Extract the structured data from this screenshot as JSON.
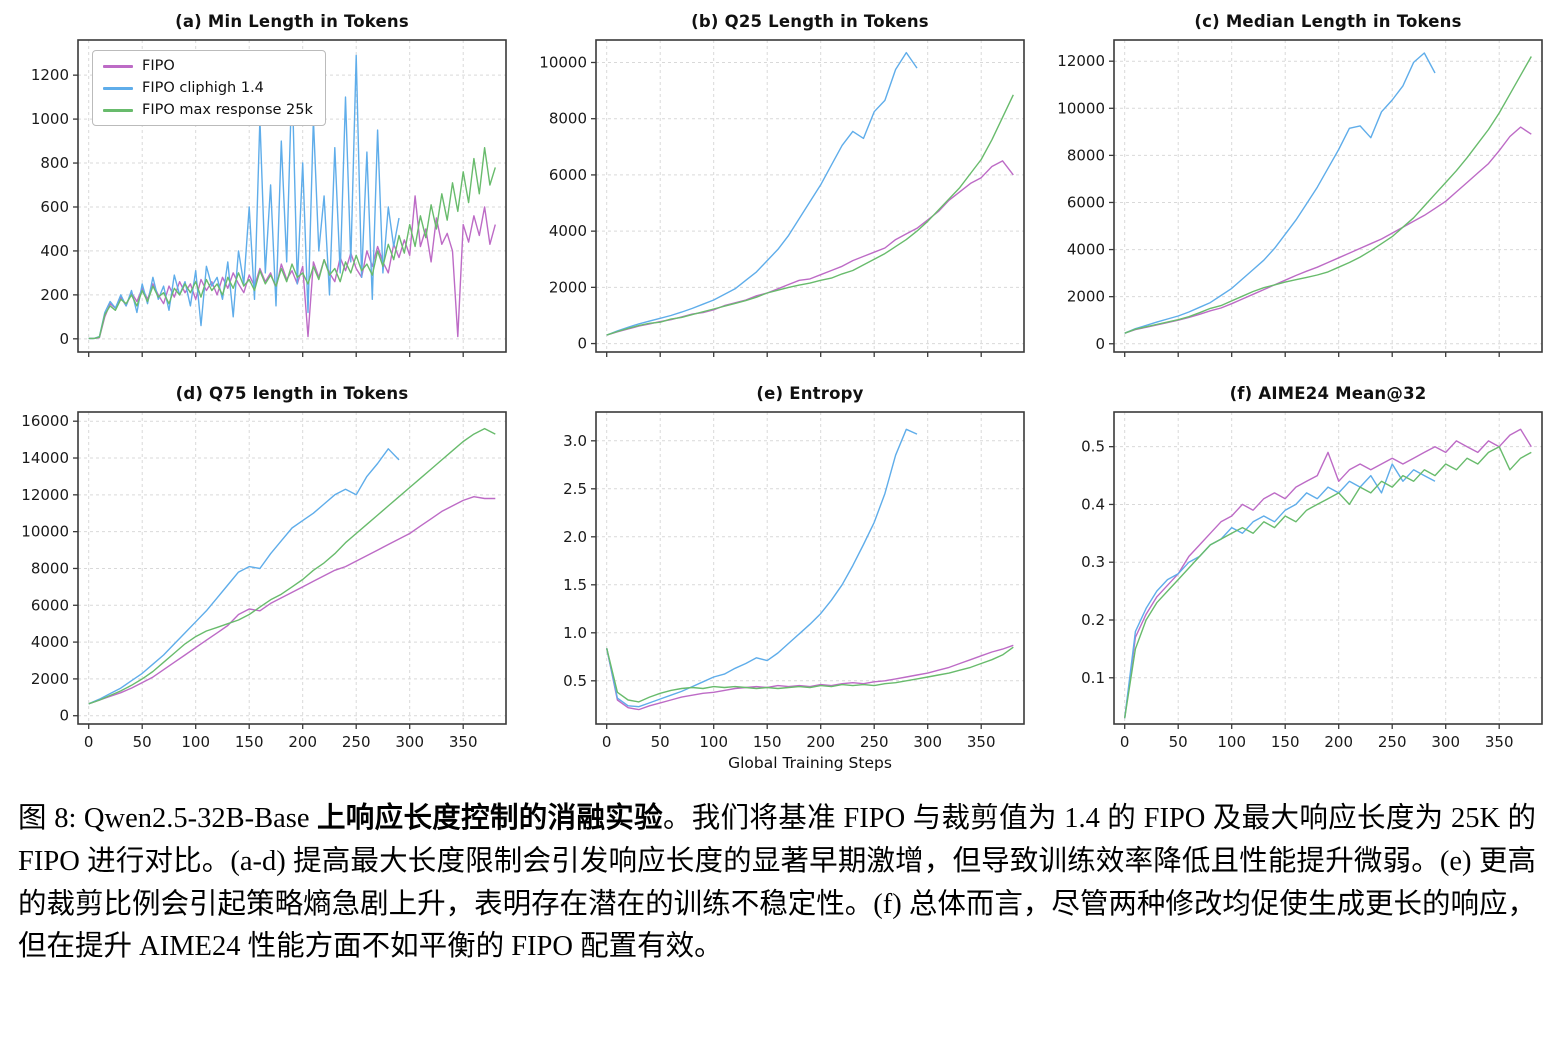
{
  "legend": {
    "entries": [
      {
        "label": "FIPO",
        "color": "#bd6bc6"
      },
      {
        "label": "FIPO cliphigh 1.4",
        "color": "#5fadea"
      },
      {
        "label": "FIPO max response 25k",
        "color": "#68bb6c"
      }
    ]
  },
  "caption": {
    "part1": "图 8: Qwen2.5-32B-Base ",
    "bold": "上响应长度控制的消融实验",
    "part2": "。我们将基准 FIPO 与裁剪值为 1.4 的 FIPO 及最大响应长度为 25K 的 FIPO 进行对比。(a-d) 提高最大长度限制会引发响应长度的显著早期激增，但导致训练效率降低且性能提升微弱。(e) 更高的裁剪比例会引起策略熵急剧上升，表明存在潜在的训练不稳定性。(f) 总体而言，尽管两种修改均促使生成更长的响应，但在提升 AIME24 性能方面不如平衡的 FIPO 配置有效。"
  },
  "chart_data": [
    {
      "id": "a",
      "type": "line",
      "title": "(a) Min Length in Tokens",
      "xlabel": "",
      "xlim": [
        -10,
        390
      ],
      "ylim": [
        -60,
        1360
      ],
      "xticks": [
        0,
        50,
        100,
        150,
        200,
        250,
        300,
        350
      ],
      "yticks": [
        0,
        200,
        400,
        600,
        800,
        1000,
        1200
      ],
      "grid": true,
      "legend_position": "upper left",
      "series": [
        {
          "name": "FIPO",
          "color": "#bd6bc6",
          "x0": 0,
          "dx": 5,
          "values": [
            2,
            2,
            5,
            100,
            160,
            140,
            190,
            150,
            210,
            170,
            230,
            180,
            250,
            200,
            160,
            240,
            190,
            260,
            210,
            250,
            180,
            270,
            220,
            260,
            200,
            280,
            230,
            300,
            250,
            210,
            290,
            240,
            320,
            260,
            300,
            230,
            340,
            270,
            310,
            250,
            330,
            10,
            350,
            280,
            360,
            300,
            260,
            370,
            310,
            390,
            320,
            280,
            400,
            330,
            420,
            350,
            300,
            430,
            370,
            450,
            380,
            650,
            420,
            500,
            350,
            550,
            430,
            480,
            400,
            10,
            520,
            440,
            560,
            470,
            600,
            430,
            520
          ]
        },
        {
          "name": "FIPO cliphigh 1.4",
          "color": "#5fadea",
          "x0": 0,
          "dx": 5,
          "values": [
            2,
            2,
            10,
            120,
            170,
            140,
            200,
            150,
            220,
            120,
            250,
            160,
            280,
            180,
            240,
            130,
            290,
            200,
            260,
            150,
            310,
            60,
            330,
            240,
            280,
            180,
            350,
            100,
            400,
            250,
            600,
            180,
            1000,
            300,
            700,
            150,
            900,
            350,
            1200,
            250,
            800,
            120,
            1000,
            400,
            650,
            200,
            870,
            300,
            1100,
            350,
            1290,
            280,
            850,
            180,
            950,
            300,
            600,
            420,
            550
          ]
        },
        {
          "name": "FIPO max response 25k",
          "color": "#68bb6c",
          "x0": 0,
          "dx": 5,
          "values": [
            2,
            2,
            8,
            110,
            150,
            130,
            180,
            160,
            200,
            150,
            220,
            170,
            240,
            190,
            210,
            160,
            230,
            200,
            250,
            210,
            260,
            190,
            270,
            220,
            250,
            200,
            280,
            230,
            300,
            240,
            270,
            220,
            310,
            250,
            290,
            240,
            320,
            260,
            340,
            280,
            300,
            250,
            330,
            270,
            360,
            290,
            320,
            260,
            350,
            300,
            380,
            310,
            340,
            290,
            400,
            330,
            430,
            360,
            470,
            390,
            520,
            420,
            560,
            460,
            610,
            500,
            660,
            540,
            710,
            580,
            760,
            620,
            820,
            660,
            870,
            700,
            780
          ]
        }
      ]
    },
    {
      "id": "b",
      "type": "line",
      "title": "(b) Q25 Length in Tokens",
      "xlabel": "",
      "xlim": [
        -10,
        390
      ],
      "ylim": [
        -300,
        10800
      ],
      "xticks": [
        0,
        50,
        100,
        150,
        200,
        250,
        300,
        350
      ],
      "yticks": [
        0,
        2000,
        4000,
        6000,
        8000,
        10000
      ],
      "grid": true,
      "series": [
        {
          "name": "FIPO",
          "color": "#bd6bc6",
          "x0": 0,
          "dx": 10,
          "values": [
            300,
            420,
            520,
            620,
            700,
            780,
            850,
            950,
            1050,
            1100,
            1200,
            1350,
            1450,
            1550,
            1700,
            1800,
            1950,
            2100,
            2250,
            2300,
            2450,
            2600,
            2750,
            2950,
            3100,
            3250,
            3400,
            3700,
            3900,
            4100,
            4400,
            4700,
            5100,
            5400,
            5700,
            5900,
            6300,
            6500,
            6000
          ]
        },
        {
          "name": "FIPO cliphigh 1.4",
          "color": "#5fadea",
          "x0": 0,
          "dx": 10,
          "values": [
            300,
            450,
            580,
            700,
            800,
            900,
            1000,
            1120,
            1250,
            1400,
            1550,
            1750,
            1950,
            2250,
            2550,
            2950,
            3350,
            3850,
            4450,
            5050,
            5650,
            6350,
            7050,
            7550,
            7300,
            8250,
            8650,
            9750,
            10350,
            9800
          ]
        },
        {
          "name": "FIPO max response 25k",
          "color": "#68bb6c",
          "x0": 0,
          "dx": 10,
          "values": [
            300,
            430,
            540,
            640,
            720,
            760,
            870,
            930,
            1030,
            1130,
            1230,
            1330,
            1430,
            1530,
            1650,
            1800,
            1900,
            2000,
            2080,
            2150,
            2250,
            2330,
            2480,
            2600,
            2800,
            3000,
            3200,
            3450,
            3700,
            4000,
            4350,
            4750,
            5150,
            5550,
            6050,
            6550,
            7250,
            8050,
            8850
          ]
        }
      ]
    },
    {
      "id": "c",
      "type": "line",
      "title": "(c) Median Length in Tokens",
      "xlabel": "",
      "xlim": [
        -10,
        390
      ],
      "ylim": [
        -350,
        12900
      ],
      "xticks": [
        0,
        50,
        100,
        150,
        200,
        250,
        300,
        350
      ],
      "yticks": [
        0,
        2000,
        4000,
        6000,
        8000,
        10000,
        12000
      ],
      "grid": true,
      "series": [
        {
          "name": "FIPO",
          "color": "#bd6bc6",
          "x0": 0,
          "dx": 10,
          "values": [
            450,
            600,
            700,
            800,
            900,
            1000,
            1120,
            1250,
            1400,
            1520,
            1700,
            1900,
            2100,
            2300,
            2500,
            2700,
            2900,
            3080,
            3250,
            3450,
            3650,
            3850,
            4050,
            4250,
            4450,
            4700,
            4950,
            5200,
            5450,
            5750,
            6050,
            6450,
            6850,
            7250,
            7650,
            8200,
            8800,
            9200,
            8900
          ]
        },
        {
          "name": "FIPO cliphigh 1.4",
          "color": "#5fadea",
          "x0": 0,
          "dx": 10,
          "values": [
            450,
            640,
            780,
            920,
            1050,
            1180,
            1350,
            1550,
            1750,
            2050,
            2350,
            2750,
            3150,
            3550,
            4050,
            4650,
            5250,
            5950,
            6650,
            7450,
            8250,
            9150,
            9250,
            8750,
            9850,
            10350,
            10950,
            11950,
            12350,
            11500
          ]
        },
        {
          "name": "FIPO max response 25k",
          "color": "#68bb6c",
          "x0": 0,
          "dx": 10,
          "values": [
            450,
            620,
            720,
            820,
            920,
            1020,
            1150,
            1320,
            1500,
            1620,
            1820,
            2020,
            2220,
            2380,
            2500,
            2620,
            2720,
            2820,
            2920,
            3050,
            3250,
            3450,
            3680,
            3950,
            4250,
            4550,
            4950,
            5350,
            5850,
            6350,
            6850,
            7350,
            7900,
            8500,
            9100,
            9800,
            10600,
            11400,
            12200
          ]
        }
      ]
    },
    {
      "id": "d",
      "type": "line",
      "title": "(d) Q75 length in Tokens",
      "xlabel": "",
      "xlim": [
        -10,
        390
      ],
      "ylim": [
        -450,
        16500
      ],
      "xticks": [
        0,
        50,
        100,
        150,
        200,
        250,
        300,
        350
      ],
      "yticks": [
        0,
        2000,
        4000,
        6000,
        8000,
        10000,
        12000,
        14000,
        16000
      ],
      "grid": true,
      "series": [
        {
          "name": "FIPO",
          "color": "#bd6bc6",
          "x0": 0,
          "dx": 10,
          "values": [
            650,
            850,
            1050,
            1250,
            1500,
            1800,
            2100,
            2500,
            2900,
            3300,
            3700,
            4100,
            4500,
            4900,
            5500,
            5800,
            5700,
            6100,
            6400,
            6700,
            7000,
            7300,
            7600,
            7900,
            8100,
            8400,
            8700,
            9000,
            9300,
            9600,
            9900,
            10300,
            10700,
            11100,
            11400,
            11700,
            11900,
            11800,
            11800
          ]
        },
        {
          "name": "FIPO cliphigh 1.4",
          "color": "#5fadea",
          "x0": 0,
          "dx": 10,
          "values": [
            650,
            900,
            1200,
            1500,
            1900,
            2300,
            2800,
            3300,
            3900,
            4500,
            5100,
            5700,
            6400,
            7100,
            7800,
            8100,
            8000,
            8800,
            9500,
            10200,
            10600,
            11000,
            11500,
            12000,
            12300,
            12000,
            13000,
            13700,
            14500,
            13900
          ]
        },
        {
          "name": "FIPO max response 25k",
          "color": "#68bb6c",
          "x0": 0,
          "dx": 10,
          "values": [
            650,
            850,
            1100,
            1350,
            1650,
            2000,
            2400,
            2900,
            3400,
            3900,
            4300,
            4600,
            4800,
            5000,
            5200,
            5500,
            5900,
            6300,
            6600,
            7000,
            7400,
            7900,
            8300,
            8800,
            9400,
            9900,
            10400,
            10900,
            11400,
            11900,
            12400,
            12900,
            13400,
            13900,
            14400,
            14900,
            15300,
            15600,
            15300
          ]
        }
      ]
    },
    {
      "id": "e",
      "type": "line",
      "title": "(e) Entropy",
      "xlabel": "Global Training Steps",
      "xlim": [
        -10,
        390
      ],
      "ylim": [
        0.05,
        3.3
      ],
      "xticks": [
        0,
        50,
        100,
        150,
        200,
        250,
        300,
        350
      ],
      "yticks": [
        0.5,
        1.0,
        1.5,
        2.0,
        2.5,
        3.0
      ],
      "grid": true,
      "series": [
        {
          "name": "FIPO",
          "color": "#bd6bc6",
          "x0": 0,
          "dx": 10,
          "values": [
            0.84,
            0.3,
            0.22,
            0.2,
            0.24,
            0.27,
            0.3,
            0.33,
            0.35,
            0.37,
            0.38,
            0.4,
            0.42,
            0.43,
            0.44,
            0.43,
            0.45,
            0.44,
            0.45,
            0.44,
            0.46,
            0.45,
            0.47,
            0.48,
            0.47,
            0.49,
            0.5,
            0.52,
            0.54,
            0.56,
            0.58,
            0.61,
            0.64,
            0.68,
            0.72,
            0.76,
            0.8,
            0.83,
            0.87
          ]
        },
        {
          "name": "FIPO cliphigh 1.4",
          "color": "#5fadea",
          "x0": 0,
          "dx": 10,
          "values": [
            0.84,
            0.32,
            0.24,
            0.23,
            0.27,
            0.31,
            0.35,
            0.39,
            0.44,
            0.49,
            0.54,
            0.57,
            0.63,
            0.68,
            0.74,
            0.71,
            0.79,
            0.89,
            0.99,
            1.09,
            1.2,
            1.34,
            1.5,
            1.7,
            1.92,
            2.15,
            2.45,
            2.85,
            3.12,
            3.07
          ]
        },
        {
          "name": "FIPO max response 25k",
          "color": "#68bb6c",
          "x0": 0,
          "dx": 10,
          "values": [
            0.84,
            0.38,
            0.3,
            0.28,
            0.33,
            0.37,
            0.4,
            0.42,
            0.43,
            0.42,
            0.44,
            0.43,
            0.44,
            0.43,
            0.42,
            0.43,
            0.42,
            0.43,
            0.44,
            0.43,
            0.45,
            0.44,
            0.46,
            0.45,
            0.46,
            0.45,
            0.47,
            0.48,
            0.5,
            0.52,
            0.54,
            0.56,
            0.58,
            0.61,
            0.64,
            0.68,
            0.72,
            0.77,
            0.85
          ]
        }
      ]
    },
    {
      "id": "f",
      "type": "line",
      "title": "(f) AIME24 Mean@32",
      "xlabel": "",
      "xlim": [
        -10,
        390
      ],
      "ylim": [
        0.02,
        0.56
      ],
      "xticks": [
        0,
        50,
        100,
        150,
        200,
        250,
        300,
        350
      ],
      "yticks": [
        0.1,
        0.2,
        0.3,
        0.4,
        0.5
      ],
      "grid": true,
      "series": [
        {
          "name": "FIPO",
          "color": "#bd6bc6",
          "x0": 0,
          "dx": 10,
          "values": [
            0.03,
            0.17,
            0.21,
            0.24,
            0.26,
            0.28,
            0.31,
            0.33,
            0.35,
            0.37,
            0.38,
            0.4,
            0.39,
            0.41,
            0.42,
            0.41,
            0.43,
            0.44,
            0.45,
            0.49,
            0.44,
            0.46,
            0.47,
            0.46,
            0.47,
            0.48,
            0.47,
            0.48,
            0.49,
            0.5,
            0.49,
            0.51,
            0.5,
            0.49,
            0.51,
            0.5,
            0.52,
            0.53,
            0.5
          ]
        },
        {
          "name": "FIPO cliphigh 1.4",
          "color": "#5fadea",
          "x0": 0,
          "dx": 10,
          "values": [
            0.03,
            0.18,
            0.22,
            0.25,
            0.27,
            0.28,
            0.3,
            0.31,
            0.33,
            0.34,
            0.36,
            0.35,
            0.37,
            0.38,
            0.37,
            0.39,
            0.4,
            0.42,
            0.41,
            0.43,
            0.42,
            0.44,
            0.43,
            0.45,
            0.42,
            0.47,
            0.44,
            0.46,
            0.45,
            0.44
          ]
        },
        {
          "name": "FIPO max response 25k",
          "color": "#68bb6c",
          "x0": 0,
          "dx": 10,
          "values": [
            0.03,
            0.15,
            0.2,
            0.23,
            0.25,
            0.27,
            0.29,
            0.31,
            0.33,
            0.34,
            0.35,
            0.36,
            0.35,
            0.37,
            0.36,
            0.38,
            0.37,
            0.39,
            0.4,
            0.41,
            0.42,
            0.4,
            0.43,
            0.42,
            0.44,
            0.43,
            0.45,
            0.44,
            0.46,
            0.45,
            0.47,
            0.46,
            0.48,
            0.47,
            0.49,
            0.5,
            0.46,
            0.48,
            0.49
          ]
        }
      ]
    }
  ]
}
